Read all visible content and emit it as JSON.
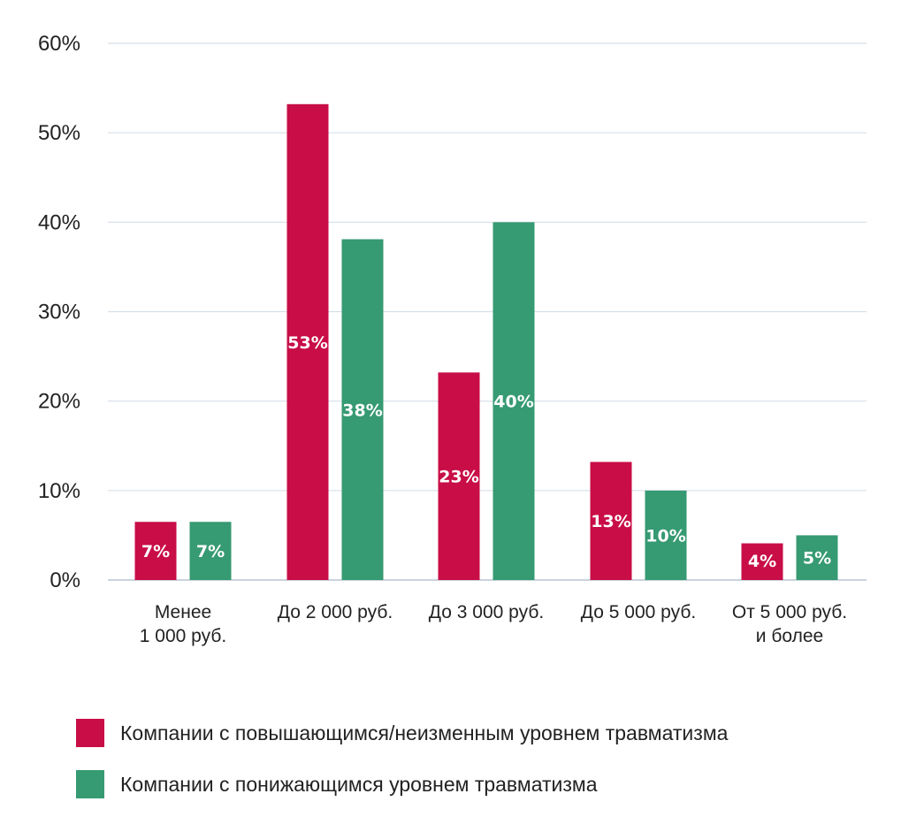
{
  "chart_data": {
    "type": "bar",
    "categories": [
      [
        "Менее",
        "1 000 руб."
      ],
      [
        "До 2 000 руб."
      ],
      [
        "До 3 000 руб."
      ],
      [
        "До 5 000 руб."
      ],
      [
        "От 5 000 руб.",
        "и более"
      ]
    ],
    "series": [
      {
        "name": "Компании с повышающимся/неизменным уровнем травматизма",
        "color": "#c80d47",
        "values": [
          6.5,
          53.2,
          23.2,
          13.2,
          4.1
        ],
        "labels": [
          "7%",
          "53%",
          "23%",
          "13%",
          "4%"
        ]
      },
      {
        "name": "Компании с понижающимся уровнем травматизма",
        "color": "#369a72",
        "values": [
          6.5,
          38.1,
          40.0,
          10.0,
          5.0
        ],
        "labels": [
          "7%",
          "38%",
          "40%",
          "10%",
          "5%"
        ]
      }
    ],
    "yticks": [
      0,
      10,
      20,
      30,
      40,
      50,
      60
    ],
    "ytick_labels": [
      "0%",
      "10%",
      "20%",
      "30%",
      "40%",
      "50%",
      "60%"
    ],
    "ylim": [
      0,
      60
    ],
    "grid": true,
    "title": "",
    "xlabel": "",
    "ylabel": "",
    "legend_position": "bottom-left"
  }
}
